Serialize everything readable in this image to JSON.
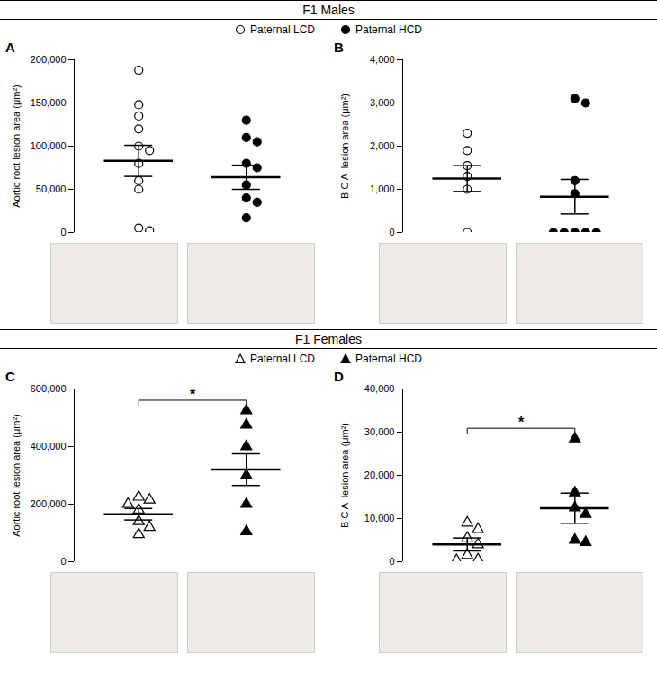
{
  "sections": [
    {
      "title": "F1 Males"
    },
    {
      "title": "F1 Females"
    }
  ],
  "chart_data": [
    {
      "type": "scatter",
      "title": "A",
      "y_label": "Aortic root lesion area (μm²)",
      "ylim": [
        0,
        200000
      ],
      "yticks": [
        0,
        {
          "value": 50000,
          "label": "50,000"
        },
        {
          "value": 100000,
          "label": "100,000"
        },
        {
          "value": 150000,
          "label": "150,000"
        },
        {
          "value": 200000,
          "label": "200,000"
        }
      ],
      "series": [
        {
          "name": "Paternal LCD",
          "color": "#000000",
          "marker": "circle-open",
          "values": [
            188000,
            148000,
            135000,
            120000,
            100000,
            95000,
            80000,
            60000,
            50000,
            5000,
            2000
          ],
          "mean": 83000,
          "sem": 18000
        },
        {
          "name": "Paternal HCD",
          "color": "#000000",
          "marker": "circle",
          "values": [
            130000,
            110000,
            105000,
            80000,
            75000,
            55000,
            40000,
            35000,
            17000
          ],
          "mean": 64000,
          "sem": 14000
        }
      ]
    },
    {
      "type": "scatter",
      "title": "B",
      "y_label": "B C A  lesion area (μm²)",
      "ylim": [
        0,
        4000
      ],
      "yticks": [
        0,
        {
          "value": 1000,
          "label": "1,000"
        },
        {
          "value": 2000,
          "label": "2,000"
        },
        {
          "value": 3000,
          "label": "3,000"
        },
        {
          "value": 4000,
          "label": "4,000"
        }
      ],
      "series": [
        {
          "name": "Paternal LCD",
          "color": "#000000",
          "marker": "circle-open",
          "values": [
            2300,
            1900,
            1550,
            1300,
            1000,
            0
          ],
          "mean": 1250,
          "sem": 300
        },
        {
          "name": "Paternal HCD",
          "color": "#000000",
          "marker": "circle",
          "values": [
            3100,
            3000,
            1200,
            900,
            0,
            0,
            0,
            0,
            0
          ],
          "mean": 830,
          "sem": 400
        }
      ]
    },
    {
      "type": "scatter",
      "title": "C",
      "y_label": "Aortic root lesion area (μm²)",
      "ylim": [
        0,
        600000
      ],
      "yticks": [
        0,
        {
          "value": 200000,
          "label": "200,000"
        },
        {
          "value": 400000,
          "label": "400,000"
        },
        {
          "value": 600000,
          "label": "600,000"
        }
      ],
      "series": [
        {
          "name": "Paternal LCD",
          "color": "#000000",
          "marker": "triangle-open",
          "values": [
            225000,
            215000,
            200000,
            180000,
            140000,
            120000,
            95000
          ],
          "mean": 165000,
          "sem": 20000
        },
        {
          "name": "Paternal HCD",
          "color": "#000000",
          "marker": "triangle",
          "values": [
            525000,
            475000,
            400000,
            300000,
            200000,
            105000
          ],
          "mean": 320000,
          "sem": 55000
        }
      ],
      "annotations": [
        {
          "text": "*",
          "between": [
            "Paternal LCD",
            "Paternal HCD"
          ]
        }
      ]
    },
    {
      "type": "scatter",
      "title": "D",
      "y_label": "B C A  lesion area (μm²)",
      "ylim": [
        0,
        40000
      ],
      "yticks": [
        0,
        {
          "value": 10000,
          "label": "10,000"
        },
        {
          "value": 20000,
          "label": "20,000"
        },
        {
          "value": 30000,
          "label": "30,000"
        },
        {
          "value": 40000,
          "label": "40,000"
        }
      ],
      "series": [
        {
          "name": "Paternal LCD",
          "color": "#000000",
          "marker": "triangle-open",
          "values": [
            9000,
            7500,
            5500,
            4000,
            1500,
            500,
            300
          ],
          "mean": 4000,
          "sem": 1500
        },
        {
          "name": "Paternal HCD",
          "color": "#000000",
          "marker": "triangle",
          "values": [
            28500,
            16000,
            12500,
            11000,
            5000,
            4500
          ],
          "mean": 12400,
          "sem": 3500
        }
      ],
      "annotations": [
        {
          "text": "*",
          "between": [
            "Paternal LCD",
            "Paternal HCD"
          ]
        }
      ]
    }
  ]
}
